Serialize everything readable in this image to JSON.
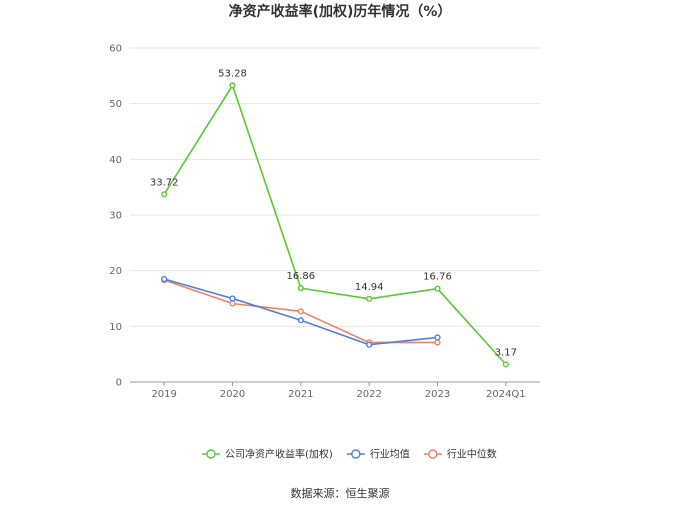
{
  "chart_data": {
    "type": "line",
    "title": "净资产收益率(加权)历年情况（%）",
    "categories": [
      "2019",
      "2020",
      "2021",
      "2022",
      "2023",
      "2024Q1"
    ],
    "ylim": [
      0,
      60
    ],
    "yticks": [
      0,
      10,
      20,
      30,
      40,
      50,
      60
    ],
    "grid": true,
    "legend_position": "bottom",
    "series": [
      {
        "name": "公司净资产收益率(加权)",
        "color": "#5ac831",
        "values": [
          33.72,
          53.28,
          16.86,
          14.94,
          16.76,
          3.17
        ],
        "labels": [
          "33.72",
          "53.28",
          "16.86",
          "14.94",
          "16.76",
          "3.17"
        ]
      },
      {
        "name": "行业均值",
        "color": "#4e7de0",
        "values": [
          18.5,
          15.0,
          11.1,
          6.7,
          8.0,
          null
        ]
      },
      {
        "name": "行业中位数",
        "color": "#f08363",
        "values": [
          18.3,
          14.1,
          12.7,
          7.1,
          7.1,
          null
        ]
      }
    ],
    "source": "数据来源：恒生聚源"
  }
}
